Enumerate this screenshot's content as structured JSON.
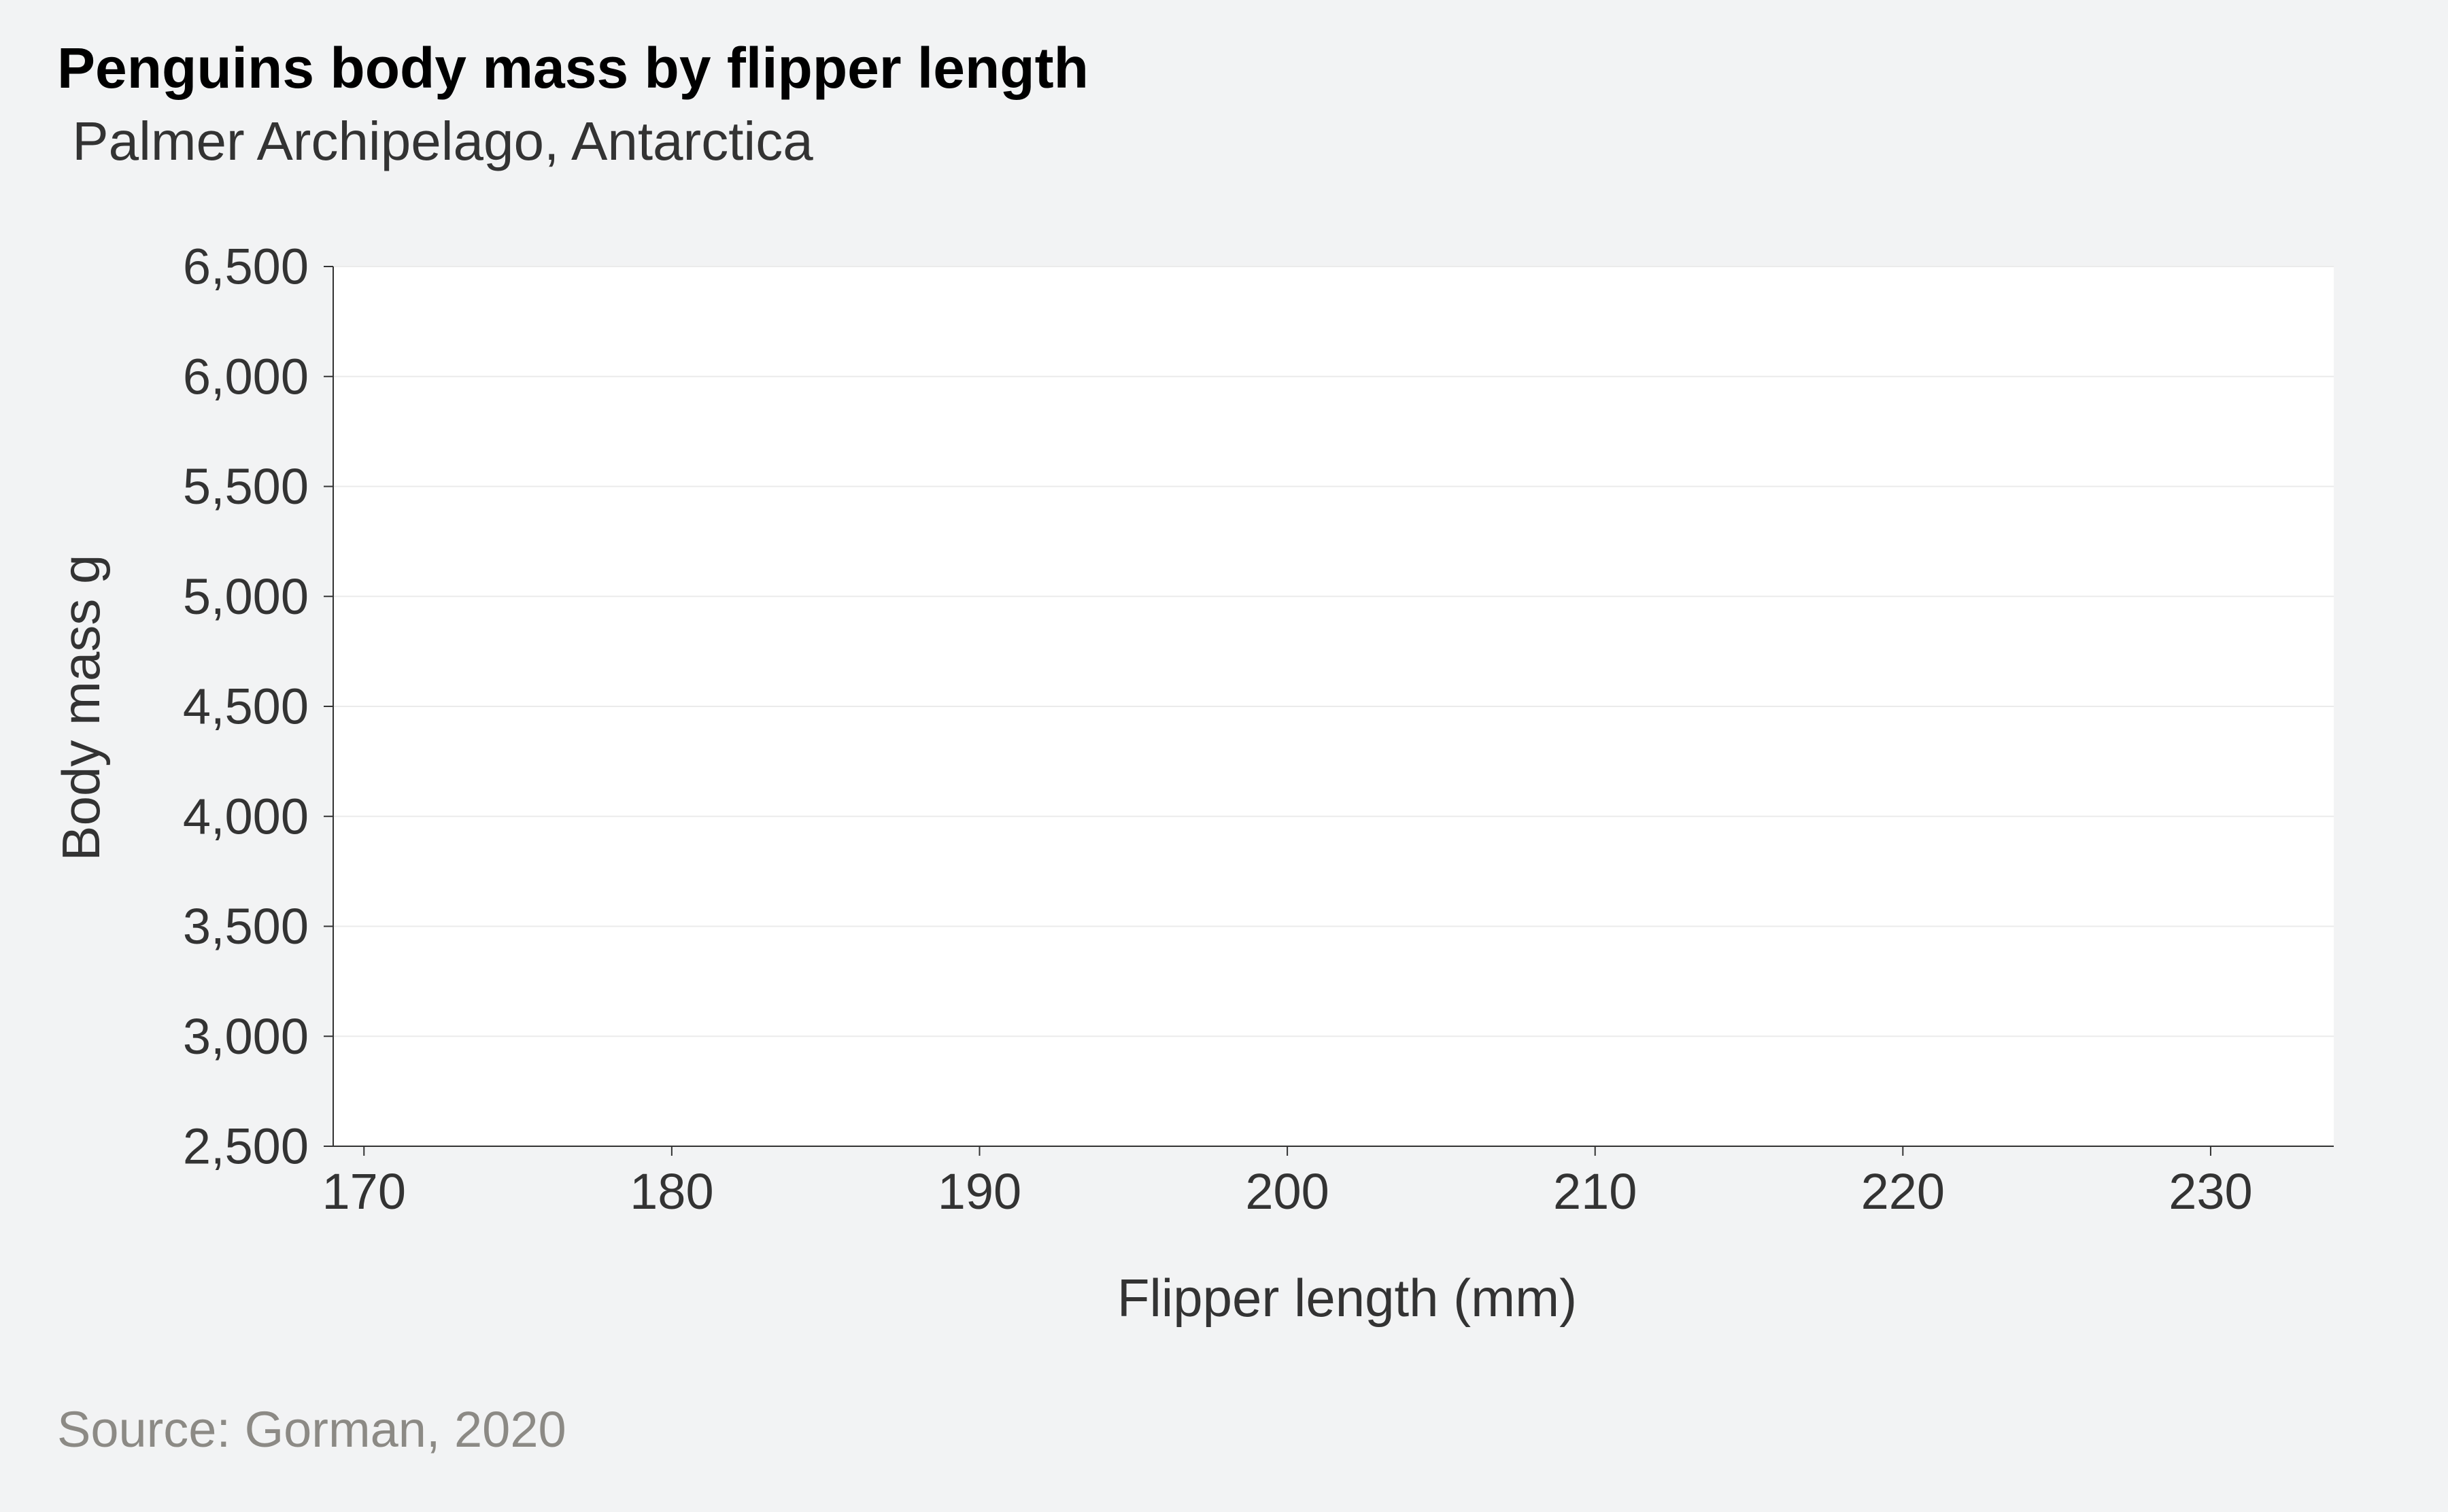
{
  "title": "Penguins body mass by flipper length",
  "subtitle": " Palmer Archipelago, Antarctica",
  "source": "Source: Gorman, 2020",
  "colors": {
    "background": "#f2f3f4",
    "panel": "#ffffff",
    "gridline": "#ebebeb",
    "axis": "#333333",
    "source_text": "#8c8a85"
  },
  "chart_data": {
    "type": "scatter",
    "title": "Penguins body mass by flipper length",
    "subtitle": "Palmer Archipelago, Antarctica",
    "xlabel": "Flipper length (mm)",
    "ylabel": "Body mass g",
    "xlim": [
      169,
      234
    ],
    "ylim": [
      2500,
      6500
    ],
    "x_ticks": [
      170,
      180,
      190,
      200,
      210,
      220,
      230
    ],
    "x_tick_labels": [
      "170",
      "180",
      "190",
      "200",
      "210",
      "220",
      "230"
    ],
    "y_ticks": [
      2500,
      3000,
      3500,
      4000,
      4500,
      5000,
      5500,
      6000,
      6500
    ],
    "y_tick_labels": [
      "2,500",
      "3,000",
      "3,500",
      "4,000",
      "4,500",
      "5,000",
      "5,500",
      "6,000",
      "6,500"
    ],
    "grid": "horizontal",
    "series": []
  }
}
